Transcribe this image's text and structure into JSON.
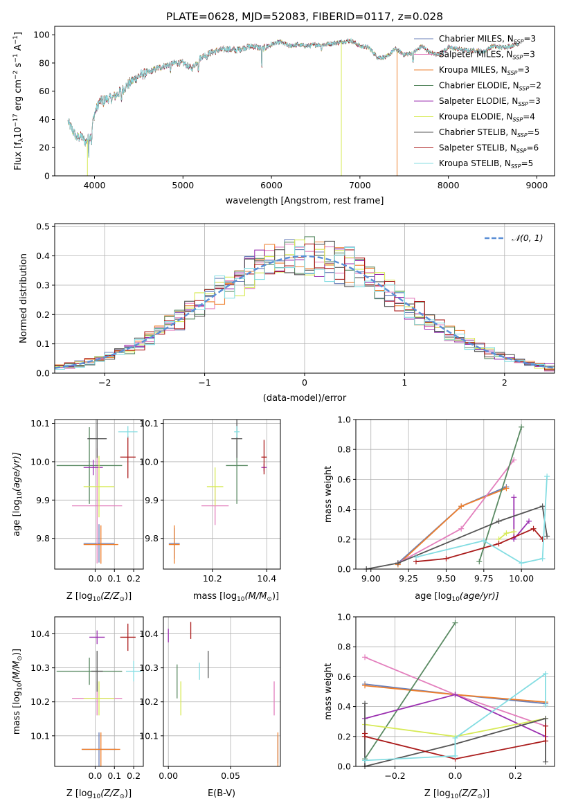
{
  "colors": {
    "chabrier_miles": "#6a7fb8",
    "salpeter_miles": "#e37fbd",
    "kroupa_miles": "#ee7f2d",
    "chabrier_elodie": "#5a8a63",
    "salpeter_elodie": "#9b30b0",
    "kroupa_elodie": "#d7ea57",
    "chabrier_stelib": "#555555",
    "salpeter_stelib": "#aa1b1b",
    "kroupa_stelib": "#84dde2",
    "normal": "#5b8fd6",
    "grid": "#b0b0b0"
  },
  "chart_data": [
    {
      "id": "spectrum",
      "type": "line",
      "title": "PLATE=0628, MJD=52083, FIBERID=0117, z=0.028",
      "xlabel": "wavelength [Angstrom, rest frame]",
      "ylabel": "Flux [f",
      "ylabel_sub": "λ",
      "ylabel_mid": "10",
      "ylabel_sup": "−17",
      "ylabel_tail": " erg cm",
      "xlim": [
        3550,
        9200
      ],
      "ylim": [
        0,
        106
      ],
      "xticks": [
        4000,
        5000,
        6000,
        7000,
        8000,
        9000
      ],
      "yticks": [
        0,
        20,
        40,
        60,
        80,
        100
      ],
      "grid": false,
      "legend_position": "top-right",
      "series": [
        {
          "name": "Chabrier MILES, N",
          "nssp": "=3",
          "color": "chabrier_miles"
        },
        {
          "name": "Salpeter MILES, N",
          "nssp": "=3",
          "color": "salpeter_miles"
        },
        {
          "name": "Kroupa MILES, N",
          "nssp": "=3",
          "color": "kroupa_miles"
        },
        {
          "name": "Chabrier ELODIE, N",
          "nssp": "=2",
          "color": "chabrier_elodie"
        },
        {
          "name": "Salpeter ELODIE, N",
          "nssp": "=3",
          "color": "salpeter_elodie"
        },
        {
          "name": "Kroupa ELODIE, N",
          "nssp": "=4",
          "color": "kroupa_elodie"
        },
        {
          "name": "Chabrier STELIB, N",
          "nssp": "=5",
          "color": "chabrier_stelib"
        },
        {
          "name": "Salpeter STELIB, N",
          "nssp": "=6",
          "color": "salpeter_stelib"
        },
        {
          "name": "Kroupa STELIB, N",
          "nssp": "=5",
          "color": "kroupa_stelib"
        }
      ],
      "spectrum_x": [
        3700,
        3800,
        3850,
        3900,
        3950,
        4000,
        4050,
        4100,
        4200,
        4300,
        4400,
        4500,
        4600,
        4700,
        4800,
        4900,
        5000,
        5100,
        5200,
        5300,
        5400,
        5500,
        5600,
        5700,
        5800,
        5900,
        6000,
        6100,
        6200,
        6300,
        6400,
        6500,
        6600,
        6700,
        6800,
        6900,
        7000,
        7100,
        7200,
        7300,
        7400,
        7500,
        7600,
        7700,
        7800,
        7900,
        8000,
        8100,
        8200,
        8300,
        8400,
        8500,
        8600,
        8700,
        8800
      ],
      "spectrum_y": [
        38,
        27,
        28,
        24,
        28,
        44,
        52,
        54,
        55,
        60,
        66,
        71,
        73,
        76,
        78,
        80,
        80,
        76,
        84,
        87,
        89,
        90,
        89,
        91,
        92,
        90,
        93,
        95,
        92,
        93,
        92,
        93,
        93,
        94,
        95,
        96,
        92,
        91,
        84,
        84,
        90,
        86,
        87,
        92,
        87,
        86,
        91,
        90,
        89,
        89,
        88,
        92,
        91,
        92,
        94
      ],
      "dropouts": [
        {
          "x": 3920,
          "y": 0,
          "color": "kroupa_elodie"
        },
        {
          "x": 6790,
          "y": 0,
          "color": "kroupa_elodie"
        },
        {
          "x": 7420,
          "y": 0,
          "color": "kroupa_miles"
        }
      ]
    },
    {
      "id": "residuals",
      "type": "histogram",
      "xlabel": "(data-model)/error",
      "ylabel": "Normed distribution",
      "xlim": [
        -2.5,
        2.5
      ],
      "ylim": [
        0,
        0.51
      ],
      "xticks": [
        -2,
        -1,
        0,
        1,
        2
      ],
      "yticks": [
        0.0,
        0.1,
        0.2,
        0.3,
        0.4,
        0.5
      ],
      "grid": true,
      "legend_position": "top-right",
      "legend_label": "𝒩(0, 1)",
      "bin_width": 0.1,
      "series": [
        {
          "name": "Chabrier MILES",
          "color": "chabrier_miles"
        },
        {
          "name": "Salpeter MILES",
          "color": "salpeter_miles"
        },
        {
          "name": "Kroupa MILES",
          "color": "kroupa_miles"
        },
        {
          "name": "Chabrier ELODIE",
          "color": "chabrier_elodie"
        },
        {
          "name": "Salpeter ELODIE",
          "color": "salpeter_elodie"
        },
        {
          "name": "Kroupa ELODIE",
          "color": "kroupa_elodie"
        },
        {
          "name": "Chabrier STELIB",
          "color": "chabrier_stelib"
        },
        {
          "name": "Salpeter STELIB",
          "color": "salpeter_stelib"
        },
        {
          "name": "Kroupa STELIB",
          "color": "kroupa_stelib"
        }
      ]
    },
    {
      "id": "age_vs_Z",
      "type": "scatter",
      "xlabel": "Z [log",
      "xlabel_sub": "10",
      "xlabel_tail": "(Z/Z",
      "ylabel": "age  [log",
      "ylabel_tail": "(age/yr)]",
      "xlim": [
        -0.21,
        0.25
      ],
      "ylim": [
        9.72,
        10.11
      ],
      "xticks": [
        0.0,
        0.1,
        0.2
      ],
      "xtick_labels": [
        "0.0",
        "0.1",
        "0.2"
      ],
      "yticks": [
        9.8,
        9.9,
        10.0,
        10.1
      ],
      "grid": true,
      "points": [
        {
          "color": "chabrier_miles",
          "x": 0.02,
          "xerr": 0.08,
          "y": 9.787,
          "yerr": 0.05
        },
        {
          "color": "salpeter_miles",
          "x": 0.01,
          "xerr": 0.13,
          "y": 9.885,
          "yerr": 0.15
        },
        {
          "color": "kroupa_miles",
          "x": 0.03,
          "xerr": 0.09,
          "y": 9.784,
          "yerr": 0.05
        },
        {
          "color": "chabrier_elodie",
          "x": -0.03,
          "xerr": 0.17,
          "y": 9.99,
          "yerr": 0.1
        },
        {
          "color": "salpeter_elodie",
          "x": -0.01,
          "xerr": 0.05,
          "y": 9.985,
          "yerr": 0.02
        },
        {
          "color": "kroupa_elodie",
          "x": 0.02,
          "xerr": 0.08,
          "y": 9.935,
          "yerr": 0.08
        },
        {
          "color": "chabrier_stelib",
          "x": 0.01,
          "xerr": 0.05,
          "y": 10.06,
          "yerr": 0.05
        },
        {
          "color": "salpeter_stelib",
          "x": 0.17,
          "xerr": 0.04,
          "y": 10.012,
          "yerr": 0.055
        },
        {
          "color": "kroupa_stelib",
          "x": 0.17,
          "xerr": 0.05,
          "y": 10.078,
          "yerr": 0.015
        }
      ]
    },
    {
      "id": "age_vs_mass",
      "type": "scatter",
      "xlabel": "mass [log",
      "xlabel_sub": "10",
      "xlabel_tail": "(M/M",
      "xlim": [
        10.02,
        10.45
      ],
      "ylim": [
        9.72,
        10.11
      ],
      "xticks": [
        10.2,
        10.4
      ],
      "xtick_labels": [
        "10.2",
        "10.4"
      ],
      "yticks": [
        9.8,
        9.9,
        10.0,
        10.1
      ],
      "grid": true,
      "points": [
        {
          "color": "chabrier_miles",
          "x": 10.06,
          "xerr": 0.02,
          "y": 9.787,
          "yerr": 0.04
        },
        {
          "color": "salpeter_miles",
          "x": 10.21,
          "xerr": 0.05,
          "y": 9.885,
          "yerr": 0.05
        },
        {
          "color": "kroupa_miles",
          "x": 10.06,
          "xerr": 0.02,
          "y": 9.784,
          "yerr": 0.05
        },
        {
          "color": "chabrier_elodie",
          "x": 10.29,
          "xerr": 0.04,
          "y": 9.99,
          "yerr": 0.1
        },
        {
          "color": "salpeter_elodie",
          "x": 10.39,
          "xerr": 0.01,
          "y": 9.985,
          "yerr": 0.01
        },
        {
          "color": "kroupa_elodie",
          "x": 10.21,
          "xerr": 0.03,
          "y": 9.935,
          "yerr": 0.05
        },
        {
          "color": "chabrier_stelib",
          "x": 10.29,
          "xerr": 0.02,
          "y": 10.06,
          "yerr": 0.05
        },
        {
          "color": "salpeter_stelib",
          "x": 10.39,
          "xerr": 0.01,
          "y": 10.012,
          "yerr": 0.045
        },
        {
          "color": "kroupa_stelib",
          "x": 10.29,
          "xerr": 0.01,
          "y": 10.078,
          "yerr": 0.015
        }
      ]
    },
    {
      "id": "massweight_vs_age",
      "type": "line",
      "xlabel": "age  [log",
      "xlabel_tail": "(age/yr)]",
      "ylabel": "mass weight",
      "xlim": [
        8.9,
        10.22
      ],
      "ylim": [
        0,
        1
      ],
      "xticks": [
        9.0,
        9.25,
        9.5,
        9.75,
        10.0
      ],
      "xtick_labels": [
        "9.00",
        "9.25",
        "9.50",
        "9.75",
        "10.00"
      ],
      "yticks": [
        0.0,
        0.2,
        0.4,
        0.6,
        0.8,
        1.0
      ],
      "grid": true,
      "series": [
        {
          "color": "chabrier_miles",
          "x": [
            9.18,
            9.6,
            9.9
          ],
          "y": [
            0.04,
            0.42,
            0.55
          ]
        },
        {
          "color": "kroupa_miles",
          "x": [
            9.18,
            9.6,
            9.9
          ],
          "y": [
            0.03,
            0.42,
            0.54
          ]
        },
        {
          "color": "salpeter_miles",
          "x": [
            9.18,
            9.6,
            9.95
          ],
          "y": [
            0.04,
            0.27,
            0.73
          ]
        },
        {
          "color": "chabrier_elodie",
          "x": [
            9.72,
            10.0
          ],
          "y": [
            0.05,
            0.95
          ]
        },
        {
          "color": "salpeter_elodie",
          "x": [
            9.95,
            9.95,
            10.05
          ],
          "y": [
            0.48,
            0.2,
            0.32
          ]
        },
        {
          "color": "kroupa_elodie",
          "x": [
            9.85,
            9.9,
            9.95
          ],
          "y": [
            0.2,
            0.24,
            0.25
          ]
        },
        {
          "color": "chabrier_stelib",
          "x": [
            8.97,
            9.18,
            9.85,
            10.14,
            10.17
          ],
          "y": [
            0.0,
            0.04,
            0.32,
            0.42,
            0.22
          ]
        },
        {
          "color": "salpeter_stelib",
          "x": [
            9.3,
            9.5,
            9.85,
            10.08,
            10.14
          ],
          "y": [
            0.05,
            0.07,
            0.17,
            0.27,
            0.2
          ]
        },
        {
          "color": "kroupa_stelib",
          "x": [
            9.3,
            9.75,
            10.0,
            10.14,
            10.17
          ],
          "y": [
            0.08,
            0.19,
            0.04,
            0.07,
            0.62
          ]
        }
      ]
    },
    {
      "id": "mass_vs_Z",
      "type": "scatter",
      "xlabel": "Z [log",
      "xlabel_sub": "10",
      "xlabel_tail": "(Z/Z",
      "ylabel": "mass [log",
      "ylabel_tail": "(M/M",
      "xlim": [
        -0.21,
        0.25
      ],
      "ylim": [
        10.01,
        10.45
      ],
      "xticks": [
        0.0,
        0.1,
        0.2
      ],
      "xtick_labels": [
        "0.0",
        "0.1",
        "0.2"
      ],
      "yticks": [
        10.1,
        10.2,
        10.3,
        10.4
      ],
      "grid": true,
      "points": [
        {
          "color": "chabrier_miles",
          "x": 0.02,
          "xerr": 0.09,
          "y": 10.06,
          "yerr": 0.05
        },
        {
          "color": "salpeter_miles",
          "x": 0.01,
          "xerr": 0.13,
          "y": 10.21,
          "yerr": 0.05
        },
        {
          "color": "kroupa_miles",
          "x": 0.03,
          "xerr": 0.1,
          "y": 10.06,
          "yerr": 0.05
        },
        {
          "color": "chabrier_elodie",
          "x": -0.03,
          "xerr": 0.17,
          "y": 10.29,
          "yerr": 0.04
        },
        {
          "color": "salpeter_elodie",
          "x": 0.01,
          "xerr": 0.04,
          "y": 10.39,
          "yerr": 0.02
        },
        {
          "color": "kroupa_elodie",
          "x": 0.02,
          "xerr": 0.08,
          "y": 10.21,
          "yerr": 0.05
        },
        {
          "color": "chabrier_stelib",
          "x": 0.01,
          "xerr": 0.03,
          "y": 10.29,
          "yerr": 0.06
        },
        {
          "color": "salpeter_stelib",
          "x": 0.17,
          "xerr": 0.04,
          "y": 10.39,
          "yerr": 0.04
        },
        {
          "color": "kroupa_stelib",
          "x": 0.2,
          "xerr": 0.04,
          "y": 10.29,
          "yerr": 0.03
        }
      ]
    },
    {
      "id": "mass_vs_ebv",
      "type": "scatter",
      "xlabel": "E(B-V)",
      "xlim": [
        -0.004,
        0.09
      ],
      "ylim": [
        10.01,
        10.45
      ],
      "xticks": [
        0.0,
        0.05
      ],
      "xtick_labels": [
        "0.00",
        "0.05"
      ],
      "yticks": [
        10.1,
        10.2,
        10.3,
        10.4
      ],
      "grid": true,
      "points": [
        {
          "color": "chabrier_miles",
          "x": 0.088,
          "xerr": 0,
          "y": 10.06,
          "yerr": 0.04
        },
        {
          "color": "salpeter_miles",
          "x": 0.085,
          "xerr": 0,
          "y": 10.21,
          "yerr": 0.05
        },
        {
          "color": "kroupa_miles",
          "x": 0.088,
          "xerr": 0,
          "y": 10.06,
          "yerr": 0.05
        },
        {
          "color": "chabrier_elodie",
          "x": 0.007,
          "xerr": 0,
          "y": 10.26,
          "yerr": 0.05
        },
        {
          "color": "salpeter_elodie",
          "x": 0.0,
          "xerr": 0,
          "y": 10.395,
          "yerr": 0.02
        },
        {
          "color": "kroupa_elodie",
          "x": 0.01,
          "xerr": 0,
          "y": 10.21,
          "yerr": 0.05
        },
        {
          "color": "chabrier_stelib",
          "x": 0.032,
          "xerr": 0,
          "y": 10.31,
          "yerr": 0.04
        },
        {
          "color": "salpeter_stelib",
          "x": 0.018,
          "xerr": 0,
          "y": 10.41,
          "yerr": 0.025
        },
        {
          "color": "kroupa_stelib",
          "x": 0.025,
          "xerr": 0,
          "y": 10.29,
          "yerr": 0.025
        }
      ]
    },
    {
      "id": "massweight_vs_Z",
      "type": "line",
      "xlabel": "Z [log",
      "xlabel_sub": "10",
      "xlabel_tail": "(Z/Z",
      "ylabel": "mass weight",
      "xlim": [
        -0.33,
        0.33
      ],
      "ylim": [
        0,
        1
      ],
      "xticks": [
        -0.2,
        0.0,
        0.2
      ],
      "xtick_labels": [
        "−0.2",
        "0.0",
        "0.2"
      ],
      "yticks": [
        0.0,
        0.2,
        0.4,
        0.6,
        0.8,
        1.0
      ],
      "grid": true,
      "series": [
        {
          "color": "chabrier_miles",
          "x": [
            -0.3,
            0.0,
            0.3
          ],
          "y": [
            0.55,
            0.48,
            0.42
          ]
        },
        {
          "color": "kroupa_miles",
          "x": [
            -0.3,
            0.0,
            0.3
          ],
          "y": [
            0.54,
            0.48,
            0.43
          ]
        },
        {
          "color": "salpeter_miles",
          "x": [
            -0.3,
            0.0,
            0.3
          ],
          "y": [
            0.73,
            0.48,
            0.27
          ]
        },
        {
          "color": "chabrier_elodie",
          "x": [
            -0.3,
            0.0
          ],
          "y": [
            0.05,
            0.96
          ]
        },
        {
          "color": "salpeter_elodie",
          "x": [
            -0.3,
            0.0,
            0.3
          ],
          "y": [
            0.32,
            0.48,
            0.2
          ]
        },
        {
          "color": "kroupa_elodie",
          "x": [
            -0.3,
            0.0,
            0.3
          ],
          "y": [
            0.28,
            0.2,
            0.32
          ]
        },
        {
          "color": "chabrier_stelib",
          "x": [
            -0.3,
            -0.3,
            0.0,
            0.3,
            0.3
          ],
          "y": [
            0.42,
            0.0,
            0.15,
            0.32,
            0.03
          ]
        },
        {
          "color": "salpeter_stelib",
          "x": [
            -0.3,
            -0.3,
            0.0,
            0.3,
            0.3
          ],
          "y": [
            0.22,
            0.2,
            0.05,
            0.17,
            0.27
          ]
        },
        {
          "color": "kroupa_stelib",
          "x": [
            -0.3,
            0.0,
            0.0,
            0.3,
            0.3
          ],
          "y": [
            0.04,
            0.07,
            0.19,
            0.62,
            0.41
          ]
        }
      ]
    }
  ]
}
